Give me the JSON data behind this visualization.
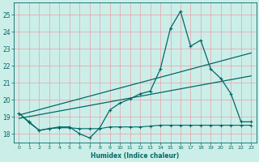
{
  "title": "",
  "xlabel": "Humidex (Indice chaleur)",
  "bg_color": "#cceee8",
  "grid_color": "#e8a0a8",
  "line_color": "#006868",
  "xlim": [
    -0.5,
    23.5
  ],
  "ylim": [
    17.5,
    25.7
  ],
  "yticks": [
    18,
    19,
    20,
    21,
    22,
    23,
    24,
    25
  ],
  "xticks": [
    0,
    1,
    2,
    3,
    4,
    5,
    6,
    7,
    8,
    9,
    10,
    11,
    12,
    13,
    14,
    15,
    16,
    17,
    18,
    19,
    20,
    21,
    22,
    23
  ],
  "series1_x": [
    0,
    1,
    2,
    3,
    4,
    5,
    6,
    7,
    8,
    9,
    10,
    11,
    12,
    13,
    14,
    15,
    16,
    17,
    18,
    19,
    20,
    21,
    22,
    23
  ],
  "series1_y": [
    19.2,
    18.7,
    18.2,
    18.3,
    18.4,
    18.4,
    18.0,
    17.75,
    18.35,
    19.4,
    19.8,
    20.05,
    20.35,
    20.5,
    21.8,
    24.2,
    25.2,
    23.15,
    23.5,
    21.8,
    21.25,
    20.35,
    18.7,
    18.7
  ],
  "series2_x": [
    0,
    1,
    2,
    3,
    4,
    5,
    6,
    7,
    8,
    9,
    10,
    11,
    12,
    13,
    14,
    15,
    16,
    17,
    18,
    19,
    20,
    21,
    22,
    23
  ],
  "series2_y": [
    19.2,
    18.65,
    18.2,
    18.3,
    18.35,
    18.35,
    18.3,
    18.3,
    18.3,
    18.4,
    18.4,
    18.4,
    18.4,
    18.45,
    18.5,
    18.5,
    18.5,
    18.5,
    18.5,
    18.5,
    18.5,
    18.5,
    18.5,
    18.5
  ],
  "series3_x": [
    0,
    23
  ],
  "series3_y": [
    19.1,
    22.75
  ],
  "series4_x": [
    0,
    23
  ],
  "series4_y": [
    18.9,
    21.4
  ]
}
